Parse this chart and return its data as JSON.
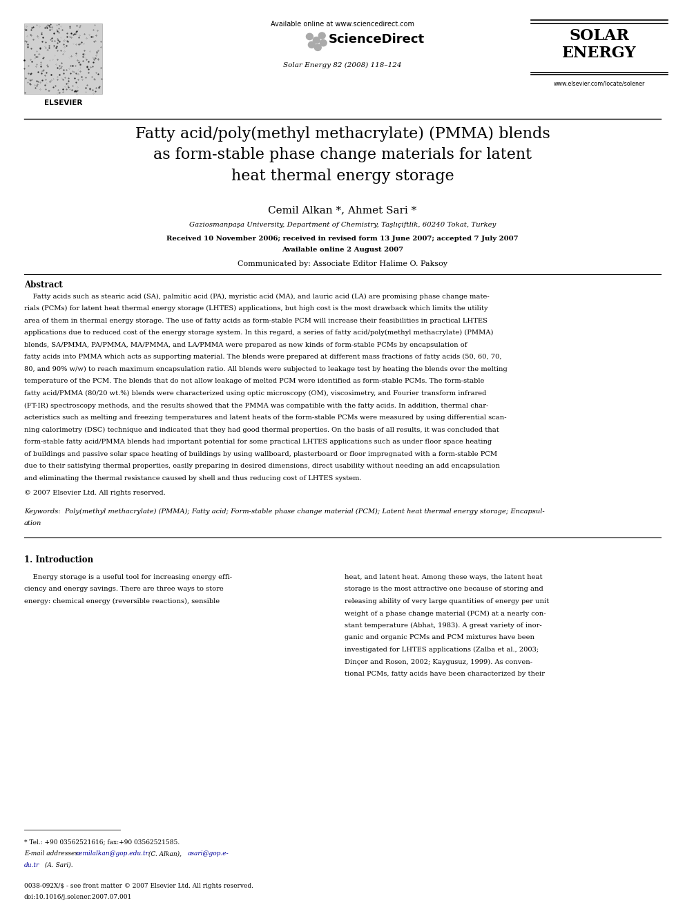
{
  "bg_color": "#ffffff",
  "page_width": 9.92,
  "page_height": 13.23,
  "header": {
    "elsevier_text": "ELSEVIER",
    "available_online": "Available online at www.sciencedirect.com",
    "sciencedirect": "ScienceDirect",
    "journal_info": "Solar Energy 82 (2008) 118–124",
    "solar_energy_line1": "SOLAR",
    "solar_energy_line2": "ENERGY",
    "website": "www.elsevier.com/locate/solener"
  },
  "title": "Fatty acid/poly(methyl methacrylate) (PMMA) blends\nas form-stable phase change materials for latent\nheat thermal energy storage",
  "authors": "Cemil Alkan *, Ahmet Sari *",
  "affiliation": "Gaziosmanpaşa University, Department of Chemistry, Taşlıçiftlik, 60240 Tokat, Turkey",
  "received": "Received 10 November 2006; received in revised form 13 June 2007; accepted 7 July 2007",
  "available": "Available online 2 August 2007",
  "communicated": "Communicated by: Associate Editor Halime O. Paksoy",
  "abstract_title": "Abstract",
  "copyright": "© 2007 Elsevier Ltd. All rights reserved.",
  "section1_title": "1. Introduction",
  "footer_left1": "0038-092X/$ - see front matter © 2007 Elsevier Ltd. All rights reserved.",
  "footer_left2": "doi:10.1016/j.solener.2007.07.001",
  "abstract_lines": [
    "    Fatty acids such as stearic acid (SA), palmitic acid (PA), myristic acid (MA), and lauric acid (LA) are promising phase change mate-",
    "rials (PCMs) for latent heat thermal energy storage (LHTES) applications, but high cost is the most drawback which limits the utility",
    "area of them in thermal energy storage. The use of fatty acids as form-stable PCM will increase their feasibilities in practical LHTES",
    "applications due to reduced cost of the energy storage system. In this regard, a series of fatty acid/poly(methyl methacrylate) (PMMA)",
    "blends, SA/PMMA, PA/PMMA, MA/PMMA, and LA/PMMA were prepared as new kinds of form-stable PCMs by encapsulation of",
    "fatty acids into PMMA which acts as supporting material. The blends were prepared at different mass fractions of fatty acids (50, 60, 70,",
    "80, and 90% w/w) to reach maximum encapsulation ratio. All blends were subjected to leakage test by heating the blends over the melting",
    "temperature of the PCM. The blends that do not allow leakage of melted PCM were identified as form-stable PCMs. The form-stable",
    "fatty acid/PMMA (80/20 wt.%) blends were characterized using optic microscopy (OM), viscosimetry, and Fourier transform infrared",
    "(FT-IR) spectroscopy methods, and the results showed that the PMMA was compatible with the fatty acids. In addition, thermal char-",
    "acteristics such as melting and freezing temperatures and latent heats of the form-stable PCMs were measured by using differential scan-",
    "ning calorimetry (DSC) technique and indicated that they had good thermal properties. On the basis of all results, it was concluded that",
    "form-stable fatty acid/PMMA blends had important potential for some practical LHTES applications such as under floor space heating",
    "of buildings and passive solar space heating of buildings by using wallboard, plasterboard or floor impregnated with a form-stable PCM",
    "due to their satisfying thermal properties, easily preparing in desired dimensions, direct usability without needing an add encapsulation",
    "and eliminating the thermal resistance caused by shell and thus reducing cost of LHTES system."
  ],
  "keywords_line1": "Keywords:  Poly(methyl methacrylate) (PMMA); Fatty acid; Form-stable phase change material (PCM); Latent heat thermal energy storage; Encapsul-",
  "keywords_line2": "ation",
  "col1_lines": [
    "    Energy storage is a useful tool for increasing energy effi-",
    "ciency and energy savings. There are three ways to store",
    "energy: chemical energy (reversible reactions), sensible"
  ],
  "col2_lines": [
    "heat, and latent heat. Among these ways, the latent heat",
    "storage is the most attractive one because of storing and",
    "releasing ability of very large quantities of energy per unit",
    "weight of a phase change material (PCM) at a nearly con-",
    "stant temperature (Abhat, 1983). A great variety of inor-",
    "ganic and organic PCMs and PCM mixtures have been",
    "investigated for LHTES applications (Zalba et al., 2003;",
    "Dinçer and Rosen, 2002; Kaygusuz, 1999). As conven-",
    "tional PCMs, fatty acids have been characterized by their"
  ],
  "footnote1": "* Tel.: +90 03562521616; fax:+90 03562521585.",
  "footnote2a": "E-mail addresses: ",
  "footnote2b": "cemilalkan@gop.edu.tr",
  "footnote2c": " (C. Alkan), ",
  "footnote2d": "asari@gop.e-",
  "footnote3a": "du.tr",
  "footnote3b": " (A. Sari).",
  "link_color": "#000099",
  "text_color": "#000000"
}
